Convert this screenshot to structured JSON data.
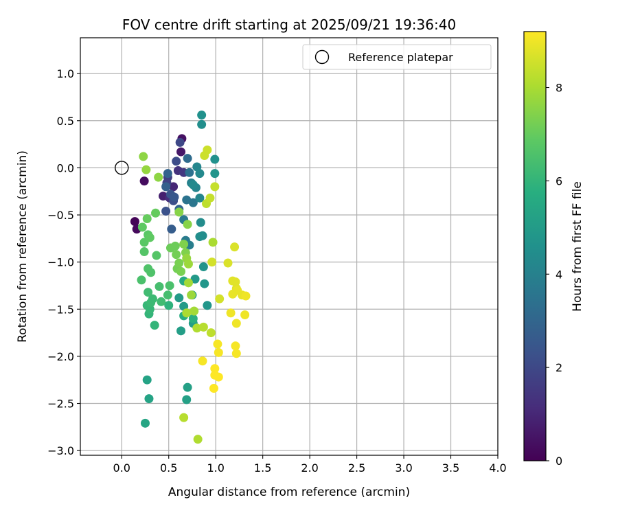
{
  "chart_data": {
    "type": "scatter",
    "title": "FOV centre drift starting at 2025/09/21 19:36:40",
    "xlabel": "Angular distance from reference (arcmin)",
    "ylabel": "Rotation from reference (arcmin)",
    "xlim": [
      -0.44,
      4.0
    ],
    "ylim": [
      -3.05,
      1.38
    ],
    "xticks": [
      0.0,
      0.5,
      1.0,
      1.5,
      2.0,
      2.5,
      3.0,
      3.5,
      4.0
    ],
    "xtick_labels": [
      "0.0",
      "0.5",
      "1.0",
      "1.5",
      "2.0",
      "2.5",
      "3.0",
      "3.5",
      "4.0"
    ],
    "yticks": [
      1.0,
      0.5,
      0.0,
      -0.5,
      -1.0,
      -1.5,
      -2.0,
      -2.5,
      -3.0
    ],
    "ytick_labels": [
      "1.0",
      "0.5",
      "0.0",
      "−0.5",
      "−1.0",
      "−1.5",
      "−2.0",
      "−2.5",
      "−3.0"
    ],
    "grid": true,
    "legend": {
      "position": "top-right",
      "entries": [
        {
          "label": "Reference platepar",
          "marker": "open-circle"
        }
      ]
    },
    "reference_point": {
      "x": 0.0,
      "y": 0.0
    },
    "colorbar": {
      "label": "Hours from first FF file",
      "colormap": "viridis",
      "min": 0,
      "max": 9.2,
      "ticks": [
        0,
        2,
        4,
        6,
        8
      ],
      "tick_labels": [
        "0",
        "2",
        "4",
        "6",
        "8"
      ]
    },
    "series": [
      {
        "name": "FOV centre",
        "points": [
          {
            "x": 0.14,
            "y": -0.57,
            "h": 0.1
          },
          {
            "x": 0.16,
            "y": -0.65,
            "h": 0.2
          },
          {
            "x": 0.24,
            "y": -0.14,
            "h": 0.3
          },
          {
            "x": 0.64,
            "y": 0.31,
            "h": 0.4
          },
          {
            "x": 0.63,
            "y": 0.17,
            "h": 0.6
          },
          {
            "x": 0.44,
            "y": -0.3,
            "h": 0.8
          },
          {
            "x": 0.55,
            "y": -0.2,
            "h": 1.0
          },
          {
            "x": 0.51,
            "y": -0.32,
            "h": 1.2
          },
          {
            "x": 0.6,
            "y": -0.03,
            "h": 1.3
          },
          {
            "x": 0.66,
            "y": -0.05,
            "h": 1.5
          },
          {
            "x": 0.49,
            "y": -0.1,
            "h": 1.7
          },
          {
            "x": 0.48,
            "y": -0.16,
            "h": 1.8
          },
          {
            "x": 0.62,
            "y": 0.27,
            "h": 2.0
          },
          {
            "x": 0.58,
            "y": 0.07,
            "h": 2.1
          },
          {
            "x": 0.55,
            "y": -0.35,
            "h": 2.2
          },
          {
            "x": 0.47,
            "y": -0.46,
            "h": 2.3
          },
          {
            "x": 0.52,
            "y": -0.28,
            "h": 2.4
          },
          {
            "x": 0.56,
            "y": -0.31,
            "h": 2.5
          },
          {
            "x": 0.53,
            "y": -0.65,
            "h": 2.7
          },
          {
            "x": 0.47,
            "y": -0.2,
            "h": 2.8
          },
          {
            "x": 0.49,
            "y": -0.06,
            "h": 2.9
          },
          {
            "x": 0.61,
            "y": -0.44,
            "h": 3.0
          },
          {
            "x": 0.7,
            "y": 0.1,
            "h": 3.2
          },
          {
            "x": 0.72,
            "y": -0.05,
            "h": 3.4
          },
          {
            "x": 0.69,
            "y": -0.34,
            "h": 3.5
          },
          {
            "x": 0.76,
            "y": -0.37,
            "h": 3.6
          },
          {
            "x": 0.66,
            "y": -0.55,
            "h": 3.7
          },
          {
            "x": 0.68,
            "y": -0.77,
            "h": 3.8
          },
          {
            "x": 0.72,
            "y": -0.82,
            "h": 3.9
          },
          {
            "x": 0.74,
            "y": -0.16,
            "h": 4.0
          },
          {
            "x": 0.79,
            "y": -0.21,
            "h": 4.1
          },
          {
            "x": 0.83,
            "y": -0.32,
            "h": 4.2
          },
          {
            "x": 0.8,
            "y": 0.01,
            "h": 4.2
          },
          {
            "x": 0.76,
            "y": -0.18,
            "h": 4.3
          },
          {
            "x": 0.83,
            "y": -0.06,
            "h": 4.3
          },
          {
            "x": 0.86,
            "y": -0.72,
            "h": 4.4
          },
          {
            "x": 0.84,
            "y": -0.58,
            "h": 4.4
          },
          {
            "x": 0.83,
            "y": -0.73,
            "h": 4.5
          },
          {
            "x": 0.85,
            "y": 0.46,
            "h": 4.5
          },
          {
            "x": 0.85,
            "y": 0.56,
            "h": 4.6
          },
          {
            "x": 0.99,
            "y": 0.09,
            "h": 4.6
          },
          {
            "x": 0.99,
            "y": -0.06,
            "h": 4.7
          },
          {
            "x": 0.87,
            "y": -1.05,
            "h": 4.7
          },
          {
            "x": 0.88,
            "y": -1.23,
            "h": 4.8
          },
          {
            "x": 0.91,
            "y": -1.46,
            "h": 4.8
          },
          {
            "x": 0.75,
            "y": -1.35,
            "h": 4.9
          },
          {
            "x": 0.78,
            "y": -1.18,
            "h": 4.9
          },
          {
            "x": 0.66,
            "y": -1.47,
            "h": 5.0
          },
          {
            "x": 0.61,
            "y": -1.38,
            "h": 5.0
          },
          {
            "x": 0.76,
            "y": -1.65,
            "h": 5.1
          },
          {
            "x": 0.63,
            "y": -1.73,
            "h": 5.1
          },
          {
            "x": 0.7,
            "y": -2.33,
            "h": 5.2
          },
          {
            "x": 0.69,
            "y": -2.46,
            "h": 5.2
          },
          {
            "x": 0.27,
            "y": -2.25,
            "h": 5.3
          },
          {
            "x": 0.29,
            "y": -2.45,
            "h": 5.3
          },
          {
            "x": 0.25,
            "y": -2.71,
            "h": 5.4
          },
          {
            "x": 0.66,
            "y": -1.2,
            "h": 5.6
          },
          {
            "x": 0.66,
            "y": -1.57,
            "h": 5.7
          },
          {
            "x": 0.76,
            "y": -1.6,
            "h": 5.8
          },
          {
            "x": 0.5,
            "y": -1.46,
            "h": 5.9
          },
          {
            "x": 0.35,
            "y": -1.67,
            "h": 6.0
          },
          {
            "x": 0.29,
            "y": -1.55,
            "h": 6.0
          },
          {
            "x": 0.27,
            "y": -1.46,
            "h": 6.1
          },
          {
            "x": 0.3,
            "y": -1.5,
            "h": 6.1
          },
          {
            "x": 0.33,
            "y": -1.39,
            "h": 6.2
          },
          {
            "x": 0.31,
            "y": -1.43,
            "h": 6.2
          },
          {
            "x": 0.28,
            "y": -1.32,
            "h": 6.3
          },
          {
            "x": 0.42,
            "y": -1.42,
            "h": 6.3
          },
          {
            "x": 0.49,
            "y": -1.35,
            "h": 6.4
          },
          {
            "x": 0.4,
            "y": -1.26,
            "h": 6.4
          },
          {
            "x": 0.51,
            "y": -1.25,
            "h": 6.5
          },
          {
            "x": 0.21,
            "y": -1.19,
            "h": 6.5
          },
          {
            "x": 0.31,
            "y": -1.11,
            "h": 6.6
          },
          {
            "x": 0.28,
            "y": -1.07,
            "h": 6.6
          },
          {
            "x": 0.37,
            "y": -0.93,
            "h": 6.7
          },
          {
            "x": 0.24,
            "y": -0.89,
            "h": 6.7
          },
          {
            "x": 0.24,
            "y": -0.79,
            "h": 6.8
          },
          {
            "x": 0.28,
            "y": -0.71,
            "h": 6.8
          },
          {
            "x": 0.22,
            "y": -0.63,
            "h": 6.9
          },
          {
            "x": 0.3,
            "y": -0.74,
            "h": 6.9
          },
          {
            "x": 0.27,
            "y": -0.54,
            "h": 7.0
          },
          {
            "x": 0.36,
            "y": -0.48,
            "h": 7.0
          },
          {
            "x": 0.52,
            "y": -0.85,
            "h": 7.1
          },
          {
            "x": 0.57,
            "y": -0.83,
            "h": 7.1
          },
          {
            "x": 0.58,
            "y": -0.92,
            "h": 7.2
          },
          {
            "x": 0.59,
            "y": -1.07,
            "h": 7.2
          },
          {
            "x": 0.63,
            "y": -1.1,
            "h": 7.3
          },
          {
            "x": 0.61,
            "y": -1.01,
            "h": 7.3
          },
          {
            "x": 0.66,
            "y": -0.81,
            "h": 7.4
          },
          {
            "x": 0.68,
            "y": -0.9,
            "h": 7.4
          },
          {
            "x": 0.7,
            "y": -0.6,
            "h": 7.5
          },
          {
            "x": 0.61,
            "y": -0.47,
            "h": 7.5
          },
          {
            "x": 0.39,
            "y": -0.1,
            "h": 7.6
          },
          {
            "x": 0.23,
            "y": 0.12,
            "h": 7.6
          },
          {
            "x": 0.26,
            "y": -0.02,
            "h": 7.7
          },
          {
            "x": 0.69,
            "y": -0.96,
            "h": 7.7
          },
          {
            "x": 0.71,
            "y": -1.02,
            "h": 7.8
          },
          {
            "x": 0.74,
            "y": -1.35,
            "h": 7.8
          },
          {
            "x": 0.77,
            "y": -1.52,
            "h": 7.9
          },
          {
            "x": 0.71,
            "y": -1.22,
            "h": 7.9
          },
          {
            "x": 0.69,
            "y": -1.54,
            "h": 8.0
          },
          {
            "x": 0.97,
            "y": -0.79,
            "h": 8.0
          },
          {
            "x": 0.8,
            "y": -1.7,
            "h": 8.1
          },
          {
            "x": 0.81,
            "y": -2.88,
            "h": 8.1
          },
          {
            "x": 0.66,
            "y": -2.65,
            "h": 8.2
          },
          {
            "x": 0.87,
            "y": -1.69,
            "h": 8.2
          },
          {
            "x": 0.95,
            "y": -1.75,
            "h": 8.3
          },
          {
            "x": 0.9,
            "y": -0.38,
            "h": 8.3
          },
          {
            "x": 0.94,
            "y": -0.32,
            "h": 8.4
          },
          {
            "x": 0.99,
            "y": -0.2,
            "h": 8.4
          },
          {
            "x": 0.88,
            "y": 0.13,
            "h": 8.5
          },
          {
            "x": 0.91,
            "y": 0.19,
            "h": 8.5
          },
          {
            "x": 0.96,
            "y": -1.0,
            "h": 8.6
          },
          {
            "x": 1.04,
            "y": -1.39,
            "h": 8.6
          },
          {
            "x": 1.13,
            "y": -1.01,
            "h": 8.7
          },
          {
            "x": 1.2,
            "y": -0.84,
            "h": 8.7
          },
          {
            "x": 1.18,
            "y": -1.2,
            "h": 8.8
          },
          {
            "x": 1.21,
            "y": -1.21,
            "h": 8.8
          },
          {
            "x": 1.22,
            "y": -1.28,
            "h": 8.8
          },
          {
            "x": 1.18,
            "y": -1.34,
            "h": 8.9
          },
          {
            "x": 1.23,
            "y": -1.3,
            "h": 8.9
          },
          {
            "x": 1.28,
            "y": -1.35,
            "h": 8.9
          },
          {
            "x": 1.32,
            "y": -1.36,
            "h": 9.0
          },
          {
            "x": 1.31,
            "y": -1.56,
            "h": 9.0
          },
          {
            "x": 1.16,
            "y": -1.54,
            "h": 9.0
          },
          {
            "x": 1.22,
            "y": -1.65,
            "h": 9.0
          },
          {
            "x": 1.02,
            "y": -1.87,
            "h": 9.1
          },
          {
            "x": 1.21,
            "y": -1.89,
            "h": 9.1
          },
          {
            "x": 1.22,
            "y": -1.97,
            "h": 9.1
          },
          {
            "x": 1.03,
            "y": -1.96,
            "h": 9.1
          },
          {
            "x": 0.86,
            "y": -2.05,
            "h": 9.1
          },
          {
            "x": 0.99,
            "y": -2.13,
            "h": 9.2
          },
          {
            "x": 0.99,
            "y": -2.2,
            "h": 9.2
          },
          {
            "x": 1.03,
            "y": -2.22,
            "h": 9.2
          },
          {
            "x": 0.98,
            "y": -2.34,
            "h": 9.2
          }
        ]
      }
    ]
  }
}
